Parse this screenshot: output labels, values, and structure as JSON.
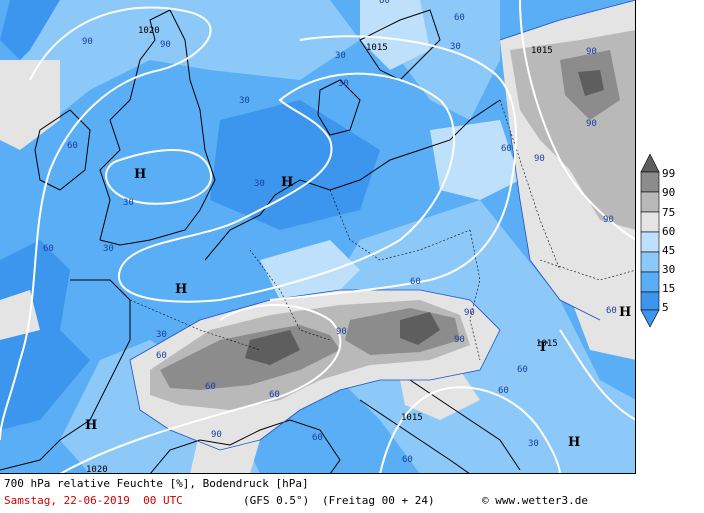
{
  "map": {
    "colors": {
      "sea_0_15": "#3c96ee",
      "rh_15_30": "#5aaef5",
      "rh_30_45": "#8cc8f8",
      "rh_45_60": "#bfe0fb",
      "rh_60_75": "#e4e4e4",
      "rh_75_90": "#b9b9b9",
      "rh_90_99": "#8c8c8c",
      "rh_99": "#5e5e5e",
      "isobar": "#ffffff",
      "coast": "#000000",
      "contour": "#2050c0"
    },
    "isobar_labels": [
      "1020",
      "1015",
      "1015",
      "1015",
      "1015",
      "1020"
    ],
    "rh_labels": [
      "90",
      "60",
      "90",
      "30",
      "30",
      "60",
      "30",
      "30",
      "60",
      "30",
      "30",
      "30",
      "90",
      "60",
      "90",
      "90",
      "90",
      "60",
      "90",
      "90",
      "60",
      "60",
      "60",
      "60",
      "30",
      "60",
      "60",
      "90",
      "60",
      "60",
      "90",
      "30",
      "60"
    ],
    "pressure_centers": [
      "H",
      "H",
      "H",
      "H",
      "T",
      "H",
      "H"
    ]
  },
  "legend": {
    "labels": [
      "99",
      "90",
      "75",
      "60",
      "45",
      "30",
      "15",
      "5"
    ]
  },
  "footer": {
    "title": "700 hPa relative Feuchte [%], Bodendruck [hPa]",
    "date": "Samstag, 22-06-2019  00 UTC",
    "model": "(GFS 0.5°)",
    "run": "(Freitag 00 + 24)",
    "copyright_symbol": "©",
    "website": "www.wetter3.de"
  }
}
